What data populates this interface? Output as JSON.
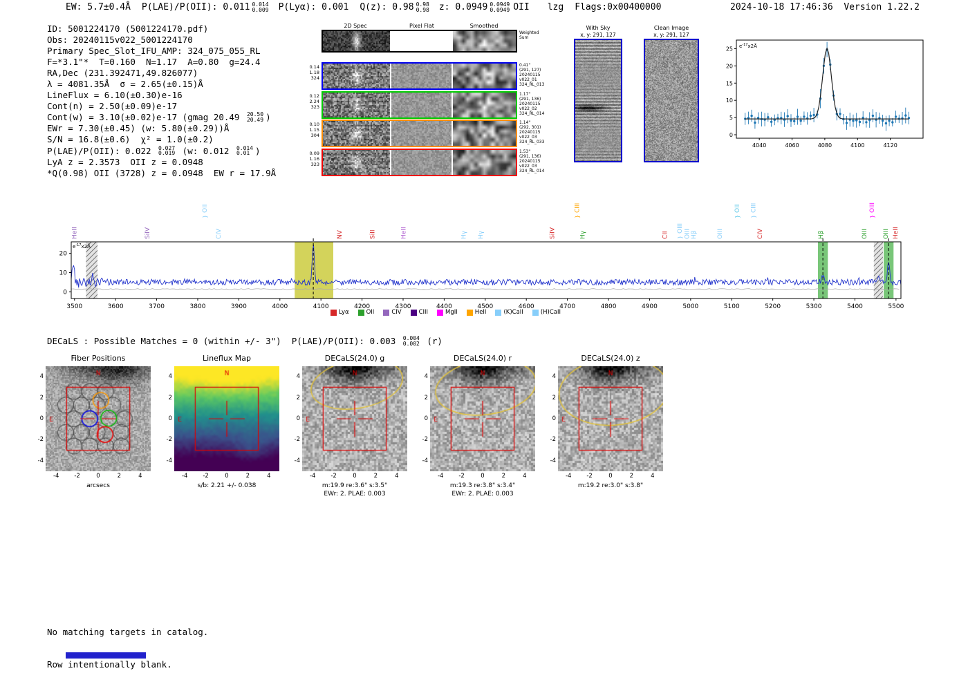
{
  "header": {
    "ew": "EW: 5.7±0.4Å",
    "plae": {
      "text": "P(LAE)/P(OII): 0.011",
      "hi": "0.014",
      "lo": "0.009"
    },
    "plya": "P(Lyα): 0.001",
    "qz": {
      "text": "Q(z): 0.98",
      "hi": "0.98",
      "lo": "0.98"
    },
    "z": {
      "text": "z: 0.0949",
      "hi": "0.0949",
      "lo": "0.0949"
    },
    "obj_type": "OII",
    "lzg": "lzg",
    "flags": "Flags:0x00400000",
    "timestamp": "2024-10-18 17:46:36  Version 1.22.2"
  },
  "summary": {
    "lines": [
      [
        {
          "t": "ID: 5001224170 (5001224170.pdf)"
        }
      ],
      [
        {
          "t": "Obs: 20240115v022_5001224170"
        }
      ],
      [
        {
          "t": "Primary Spec_Slot_IFU_AMP: 324_075_055_RL"
        }
      ],
      [
        {
          "t": "F=*3.1\"*  T=0.160  N=1.17  A=0.80  g=24.4"
        }
      ],
      [
        {
          "t": "RA,Dec (231.392471,49.826077)"
        }
      ],
      [
        {
          "t": "λ = 4081.35Å  σ = 2.65(±0.15)Å"
        }
      ],
      [
        {
          "t": "LineFlux = 6.10(±0.30)e-16"
        }
      ],
      [
        {
          "t": "Cont(n) = 2.50(±0.09)e-17"
        }
      ],
      [
        {
          "t": "Cont(w) = 3.10(±0.02)e-17 (gmag 20.49 "
        },
        {
          "frac": [
            "20.50",
            "20.49"
          ]
        },
        {
          "t": ")"
        }
      ],
      [
        {
          "t": "EWr = 7.30(±0.45) (w: 5.80(±0.29))Å"
        }
      ],
      [
        {
          "t": "S/N = 16.8(±0.6)  χ² = 1.0(±0.2)"
        }
      ],
      [
        {
          "t": "P(LAE)/P(OII): 0.022 "
        },
        {
          "frac": [
            "0.027",
            "0.019"
          ]
        },
        {
          "t": " (w: 0.012 "
        },
        {
          "frac": [
            "0.014",
            "0.01"
          ]
        },
        {
          "t": ")"
        }
      ],
      [
        {
          "t": "LyA z = 2.3573  OII z = 0.0948"
        }
      ],
      [
        {
          "t": "*Q(0.98) OII (3728) z = 0.0948  EW r = 17.9Å"
        }
      ]
    ]
  },
  "cutouts_2d": {
    "col_headers": [
      "2D Spec",
      "Pixel Flat",
      "Smoothed"
    ],
    "rows": [
      {
        "border": "#000000",
        "kind": "sum",
        "left": [],
        "right": [
          "Weighted",
          "Sum"
        ]
      },
      {
        "border": "#0000ee",
        "kind": "fiber",
        "left": [
          "0.14",
          "1.18",
          "324"
        ],
        "right": [
          "0.41\"",
          "(291, 127)",
          "20240115",
          "v022_01",
          "324_RL_013"
        ]
      },
      {
        "border": "#00cc00",
        "kind": "fiber",
        "left": [
          "0.12",
          "2.24",
          "323"
        ],
        "right": [
          "1.17\"",
          "(291, 136)",
          "20240115",
          "v022_02",
          "324_RL_014"
        ]
      },
      {
        "border": "#ff8c00",
        "kind": "fiber",
        "left": [
          "0.10",
          "1.15",
          "304"
        ],
        "right": [
          "1.14\"",
          "(292, 301)",
          "20240115",
          "v022_03",
          "324_RL_033"
        ]
      },
      {
        "border": "#ee0000",
        "kind": "fiber",
        "left": [
          "0.09",
          "1.16",
          "323"
        ],
        "right": [
          "1.53\"",
          "(291, 136)",
          "20240115",
          "v022_03",
          "324_RL_014"
        ]
      }
    ]
  },
  "sky_panels": {
    "with_sky": {
      "title": "With Sky",
      "subtitle": "x, y: 291, 127"
    },
    "clean": {
      "title": "Clean Image",
      "subtitle": "x, y: 291, 127"
    }
  },
  "matches_line": {
    "parts": [
      {
        "t": "DECaLS : Possible Matches = 0 (within +/- 3\")  P(LAE)/P(OII): 0.003 "
      },
      {
        "frac": [
          "0.004",
          "0.002"
        ]
      },
      {
        "t": " (r)"
      }
    ]
  },
  "footer": {
    "lines": [
      "No matching targets in catalog.",
      "Row intentionally blank."
    ]
  },
  "chart_data": [
    {
      "id": "linefit",
      "type": "scatter",
      "title": "Emission line gaussian fit",
      "annotation": {
        "base": "e",
        "sup": "-17",
        "rest": "x2Å"
      },
      "xlim": [
        4026,
        4140
      ],
      "ylim": [
        -1,
        27.5
      ],
      "x_ticks": [
        4040,
        4060,
        4080,
        4100,
        4120
      ],
      "y_ticks": [
        0,
        5,
        10,
        15,
        20,
        25
      ],
      "continuum": 4.6,
      "gaussian": {
        "center": 4081.35,
        "sigma": 2.65,
        "amplitude": 20.5
      },
      "point_step": 2,
      "noise": 1.3,
      "error_bar": 1.8,
      "point_color": "#1f77b4",
      "fit_color": "#222222"
    },
    {
      "id": "spectrum",
      "type": "line",
      "annotation": {
        "base": "e",
        "sup": "-17",
        "rest": "x2Å"
      },
      "xlim": [
        3492,
        5512
      ],
      "ylim": [
        -3.5,
        26
      ],
      "x_ticks": [
        3500,
        3600,
        3700,
        3800,
        3900,
        4000,
        4100,
        4200,
        4300,
        4400,
        4500,
        4600,
        4700,
        4800,
        4900,
        5000,
        5100,
        5200,
        5300,
        5400,
        5500
      ],
      "y_ticks": [
        0,
        10,
        20
      ],
      "baseline": 5.0,
      "noise_amp": 1.5,
      "error_level": 1.4,
      "line_color": "#2233cc",
      "error_color": "#aaaaaa",
      "peaks": [
        {
          "center": 4081.35,
          "sigma": 2.65,
          "amplitude": 19,
          "dashed": true
        },
        {
          "center": 5322,
          "sigma": 3.0,
          "amplitude": 3.2,
          "dashed": true
        },
        {
          "center": 5482,
          "sigma": 2.6,
          "amplitude": 10,
          "dashed": true
        },
        {
          "center": 3497,
          "sigma": 2.2,
          "amplitude": 11,
          "dashed": false
        },
        {
          "center": 3545,
          "sigma": 1.8,
          "amplitude": 4.5,
          "dashed": false
        },
        {
          "center": 5458,
          "sigma": 1.8,
          "amplitude": 3.5,
          "dashed": false
        }
      ],
      "bands": [
        {
          "x0": 3528,
          "x1": 3556,
          "style": "hatch"
        },
        {
          "x0": 4036,
          "x1": 4130,
          "style": "solid",
          "color": "#c8c832"
        },
        {
          "x0": 5310,
          "x1": 5334,
          "style": "solid",
          "color": "#58b858"
        },
        {
          "x0": 5446,
          "x1": 5468,
          "style": "hatch"
        },
        {
          "x0": 5470,
          "x1": 5494,
          "style": "solid",
          "color": "#58b858"
        }
      ],
      "line_labels": [
        {
          "wl": 3505,
          "text": "HeII",
          "color": "#9467bd",
          "tier": 0
        },
        {
          "wl": 3682,
          "text": "SiIV",
          "color": "#9467bd",
          "tier": 0
        },
        {
          "wl": 3822,
          "text": "OII",
          "color": "#87cefa",
          "tier": 1,
          "bracket": true
        },
        {
          "wl": 3856,
          "text": "CIV",
          "color": "#87cefa",
          "tier": 0
        },
        {
          "wl": 4150,
          "text": "NV",
          "color": "#d62728",
          "tier": 0
        },
        {
          "wl": 4230,
          "text": "SiII",
          "color": "#d62728",
          "tier": 0
        },
        {
          "wl": 4306,
          "text": "HeII",
          "color": "#b05fd0",
          "tier": 0
        },
        {
          "wl": 4452,
          "text": "Hγ",
          "color": "#87cefa",
          "tier": 0
        },
        {
          "wl": 4494,
          "text": "Hγ",
          "color": "#87cefa",
          "tier": 0
        },
        {
          "wl": 4668,
          "text": "SiIV",
          "color": "#d62728",
          "tier": 0
        },
        {
          "wl": 4728,
          "text": "CIII",
          "color": "#ffa500",
          "tier": 1,
          "bracket": true
        },
        {
          "wl": 4742,
          "text": "Hγ",
          "color": "#2ca02c",
          "tier": 0
        },
        {
          "wl": 4942,
          "text": "CII",
          "color": "#d62728",
          "tier": 0
        },
        {
          "wl": 4978,
          "text": "OIII",
          "color": "#87cefa",
          "tier": 0,
          "bracket": true
        },
        {
          "wl": 4996,
          "text": "OIII",
          "color": "#87cefa",
          "tier": 0
        },
        {
          "wl": 5012,
          "text": "Hβ",
          "color": "#87cefa",
          "tier": 0
        },
        {
          "wl": 5076,
          "text": "OIII",
          "color": "#87cefa",
          "tier": 0
        },
        {
          "wl": 5118,
          "text": "OII",
          "color": "#5bc8e8",
          "tier": 1,
          "bracket": true
        },
        {
          "wl": 5158,
          "text": "CIII",
          "color": "#87cefa",
          "tier": 1,
          "bracket": true
        },
        {
          "wl": 5174,
          "text": "CIV",
          "color": "#d62728",
          "tier": 0
        },
        {
          "wl": 5322,
          "text": "Hβ",
          "color": "#2ca02c",
          "tier": 0
        },
        {
          "wl": 5428,
          "text": "OIII",
          "color": "#2ca02c",
          "tier": 0
        },
        {
          "wl": 5446,
          "text": "OIII",
          "color": "#ff00ff",
          "tier": 1,
          "bracket": true
        },
        {
          "wl": 5480,
          "text": "OIII",
          "color": "#2ca02c",
          "tier": 0
        },
        {
          "wl": 5504,
          "text": "HeII",
          "color": "#d62728",
          "tier": 0
        }
      ],
      "legend": [
        {
          "label": "Lyα",
          "color": "#d62728"
        },
        {
          "label": "OII",
          "color": "#2ca02c"
        },
        {
          "label": "CIV",
          "color": "#9467bd"
        },
        {
          "label": "CIII",
          "color": "#4b0082"
        },
        {
          "label": "MgII",
          "color": "#ff00ff"
        },
        {
          "label": "HeII",
          "color": "#ffa500"
        },
        {
          "label": "(K)CaII",
          "color": "#87cefa"
        },
        {
          "label": "(H)CaII",
          "color": "#87cefa"
        }
      ]
    },
    {
      "id": "fiber_positions",
      "type": "image-panel",
      "kind": "fiber",
      "title": "Fiber Positions",
      "ticks": [
        -4,
        -2,
        0,
        2,
        4
      ],
      "lim": [
        -5,
        5
      ],
      "captions": [
        "arcsecs"
      ],
      "compass": {
        "north": "N",
        "east": "E"
      },
      "fiber_radius": 0.75,
      "gray_fibers": [
        [
          -2.3,
          2.6
        ],
        [
          -0.8,
          2.6
        ],
        [
          0.7,
          2.6
        ],
        [
          -3.1,
          1.3
        ],
        [
          -1.6,
          1.3
        ],
        [
          -0.1,
          1.3
        ],
        [
          1.4,
          1.3
        ],
        [
          -2.3,
          0
        ],
        [
          2.5,
          0
        ],
        [
          -3.1,
          -1.3
        ],
        [
          -1.6,
          -1.3
        ],
        [
          -0.1,
          -1.3
        ],
        [
          2.2,
          -1.3
        ],
        [
          -2.3,
          -2.6
        ],
        [
          -0.8,
          -2.6
        ],
        [
          0.7,
          -2.6
        ],
        [
          2.2,
          -2.6
        ]
      ],
      "colored_fibers": [
        {
          "x": -0.8,
          "y": 0.0,
          "color": "#0000ee"
        },
        {
          "x": 1.0,
          "y": 0.05,
          "color": "#00bb00"
        },
        {
          "x": 0.25,
          "y": 1.75,
          "color": "#ff9900"
        },
        {
          "x": 0.65,
          "y": -1.5,
          "color": "#ee0000"
        }
      ]
    },
    {
      "id": "lineflux_map",
      "type": "image-panel",
      "kind": "viridis",
      "title": "Lineflux Map",
      "ticks": [
        -4,
        -2,
        0,
        2,
        4
      ],
      "lim": [
        -5,
        5
      ],
      "captions": [
        "s/b: 2.21 +/- 0.038"
      ],
      "compass": {
        "north": "N",
        "east": "E"
      }
    },
    {
      "id": "decals_g",
      "type": "image-panel",
      "kind": "cutout",
      "title": "DECaLS(24.0) g",
      "ticks": [
        -4,
        -2,
        0,
        2,
        4
      ],
      "lim": [
        -5,
        5
      ],
      "captions": [
        "m:19.9 re:3.6\" s:3.5\"",
        "EWr: 2. PLAE: 0.003"
      ],
      "compass": {
        "north": "N",
        "east": "E"
      },
      "ellipse": {
        "cx": 0.2,
        "cy": 3.3,
        "rx": 4.4,
        "ry": 2.3,
        "angle": -10
      }
    },
    {
      "id": "decals_r",
      "type": "image-panel",
      "kind": "cutout",
      "title": "DECaLS(24.0) r",
      "ticks": [
        -4,
        -2,
        0,
        2,
        4
      ],
      "lim": [
        -5,
        5
      ],
      "captions": [
        "m:19.3 re:3.8\" s:3.4\"",
        "EWr: 2. PLAE: 0.003"
      ],
      "compass": {
        "north": "N",
        "east": "E"
      },
      "ellipse": {
        "cx": 0.3,
        "cy": 3.0,
        "rx": 4.8,
        "ry": 2.6,
        "angle": -8
      }
    },
    {
      "id": "decals_z",
      "type": "image-panel",
      "kind": "cutout",
      "title": "DECaLS(24.0) z",
      "ticks": [
        -4,
        -2,
        0,
        2,
        4
      ],
      "lim": [
        -5,
        5
      ],
      "captions": [
        "m:19.2 re:3.0\" s:3.8\""
      ],
      "compass": {
        "north": "N",
        "east": "E"
      },
      "ellipse": {
        "cx": 0.3,
        "cy": 2.6,
        "rx": 5.2,
        "ry": 3.2,
        "angle": -5
      }
    }
  ]
}
